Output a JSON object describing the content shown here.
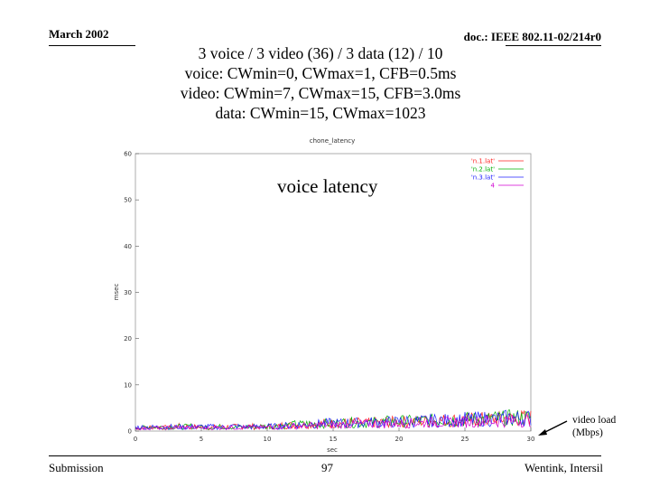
{
  "header": {
    "date": "March 2002",
    "doc": "doc.: IEEE 802.11-02/214r0"
  },
  "title_lines": [
    "3 voice / 3 video (36) / 3 data (12) / 10",
    "voice: CWmin=0, CWmax=1, CFB=0.5ms",
    "video: CWmin=7, CWmax=15, CFB=3.0ms",
    "data: CWmin=15, CWmax=1023"
  ],
  "overlay_label": "voice latency",
  "annotation": {
    "line1": "video load",
    "line2": "(Mbps)"
  },
  "footer": {
    "left": "Submission",
    "page": "97",
    "right": "Wentink, Intersil"
  },
  "colors": {
    "series1": "#ff2020",
    "series2": "#00b000",
    "series3": "#2020ff",
    "series4": "#d000d0",
    "plot_frame": "#999999",
    "arrow": "#000000"
  },
  "chart_data": {
    "type": "line",
    "title": "chone_latency",
    "xlabel": "sec",
    "ylabel": "msec",
    "xlim": [
      0,
      30
    ],
    "ylim": [
      0,
      60
    ],
    "x_ticks": [
      0,
      5,
      10,
      15,
      20,
      25,
      30
    ],
    "y_ticks": [
      0,
      10,
      20,
      30,
      40,
      50,
      60
    ],
    "grid": false,
    "legend_position": "top-right",
    "series": [
      {
        "name": "'n.1.lat'",
        "values_by_second": [
          0.8,
          1.0,
          0.9,
          1.2,
          1.1,
          0.9,
          1.0,
          1.1,
          1.2,
          1.0,
          1.2,
          1.5,
          1.6,
          1.7,
          1.9,
          2.0,
          2.1,
          2.0,
          2.2,
          2.3,
          2.4,
          2.5,
          2.6,
          2.7,
          2.8,
          2.9,
          3.0,
          3.1,
          3.2,
          3.3,
          3.4
        ]
      },
      {
        "name": "'n.2.lat'",
        "values_by_second": [
          0.9,
          1.1,
          1.0,
          1.1,
          1.2,
          1.0,
          1.1,
          1.0,
          1.1,
          1.2,
          1.3,
          1.5,
          1.7,
          1.8,
          1.9,
          2.1,
          2.2,
          2.1,
          2.3,
          2.4,
          2.5,
          2.6,
          2.6,
          2.8,
          2.9,
          3.0,
          3.0,
          3.2,
          3.3,
          3.4,
          3.5
        ]
      },
      {
        "name": "'n.3.lat'",
        "values_by_second": [
          1.0,
          1.0,
          1.1,
          1.0,
          1.1,
          1.1,
          1.0,
          1.2,
          1.0,
          1.1,
          1.2,
          1.4,
          1.6,
          1.8,
          2.0,
          2.0,
          2.1,
          2.2,
          2.2,
          2.3,
          2.5,
          2.5,
          2.7,
          2.7,
          2.8,
          3.0,
          3.1,
          3.1,
          3.3,
          3.3,
          3.4
        ]
      },
      {
        "name": "4",
        "values_by_second": [
          0.7,
          0.8,
          0.8,
          0.9,
          0.9,
          0.8,
          0.9,
          0.9,
          1.0,
          0.9,
          1.0,
          1.2,
          1.3,
          1.4,
          1.5,
          1.6,
          1.7,
          1.8,
          1.8,
          1.9,
          2.0,
          2.1,
          2.2,
          2.2,
          2.3,
          2.4,
          2.5,
          2.5,
          2.6,
          2.7,
          2.8
        ]
      }
    ]
  }
}
